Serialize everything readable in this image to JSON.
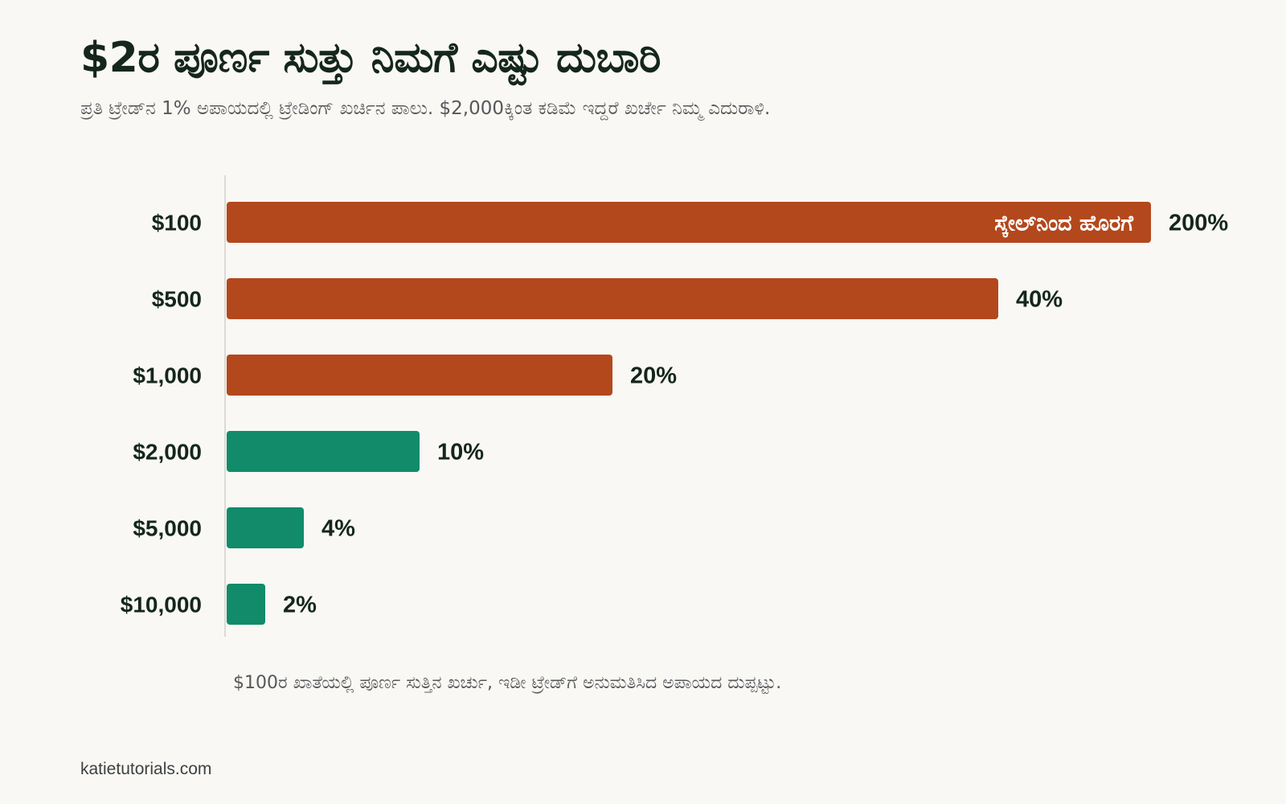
{
  "header": {
    "title": "$2ರ ಪೂರ್ಣ ಸುತ್ತು ನಿಮಗೆ ಎಷ್ಟು ದುಬಾರಿ",
    "subtitle": "ಪ್ರತಿ ಟ್ರೇಡ್‌ನ 1% ಅಪಾಯದಲ್ಲಿ ಟ್ರೇಡಿಂಗ್ ಖರ್ಚಿನ ಪಾಲು. $2,000ಕ್ಕಿಂತ ಕಡಿಮೆ ಇದ್ದರೆ ಖರ್ಚೇ ನಿಮ್ಮ ಎದುರಾಳಿ."
  },
  "footer": {
    "note": "$100ರ ಖಾತೆಯಲ್ಲಿ ಪೂರ್ಣ ಸುತ್ತಿನ ಖರ್ಚು, ಇಡೀ ಟ್ರೇಡ್‌ಗೆ ಅನುಮತಿಸಿದ ಅಪಾಯದ ದುಪ್ಪಟ್ಟು.",
    "source": "katietutorials.com"
  },
  "colors": {
    "high_cost": "#b3481d",
    "low_cost": "#118b69",
    "axis": "#cfcfcf",
    "label": "#15261d"
  },
  "chart_data": {
    "type": "bar",
    "orientation": "horizontal",
    "categories": [
      "$100",
      "$500",
      "$1,000",
      "$2,000",
      "$5,000",
      "$10,000"
    ],
    "values": [
      200,
      40,
      20,
      10,
      4,
      2
    ],
    "value_labels": [
      "200%",
      "40%",
      "20%",
      "10%",
      "4%",
      "2%"
    ],
    "bar_colors": [
      "#b3481d",
      "#b3481d",
      "#b3481d",
      "#118b69",
      "#118b69",
      "#118b69"
    ],
    "xlim": [
      0,
      48
    ],
    "clipped": [
      true,
      false,
      false,
      false,
      false,
      false
    ],
    "clip_label": "ಸ್ಕೇಲ್‌ನಿಂದ ಹೊರಗೆ",
    "grid": false,
    "legend": "none"
  }
}
